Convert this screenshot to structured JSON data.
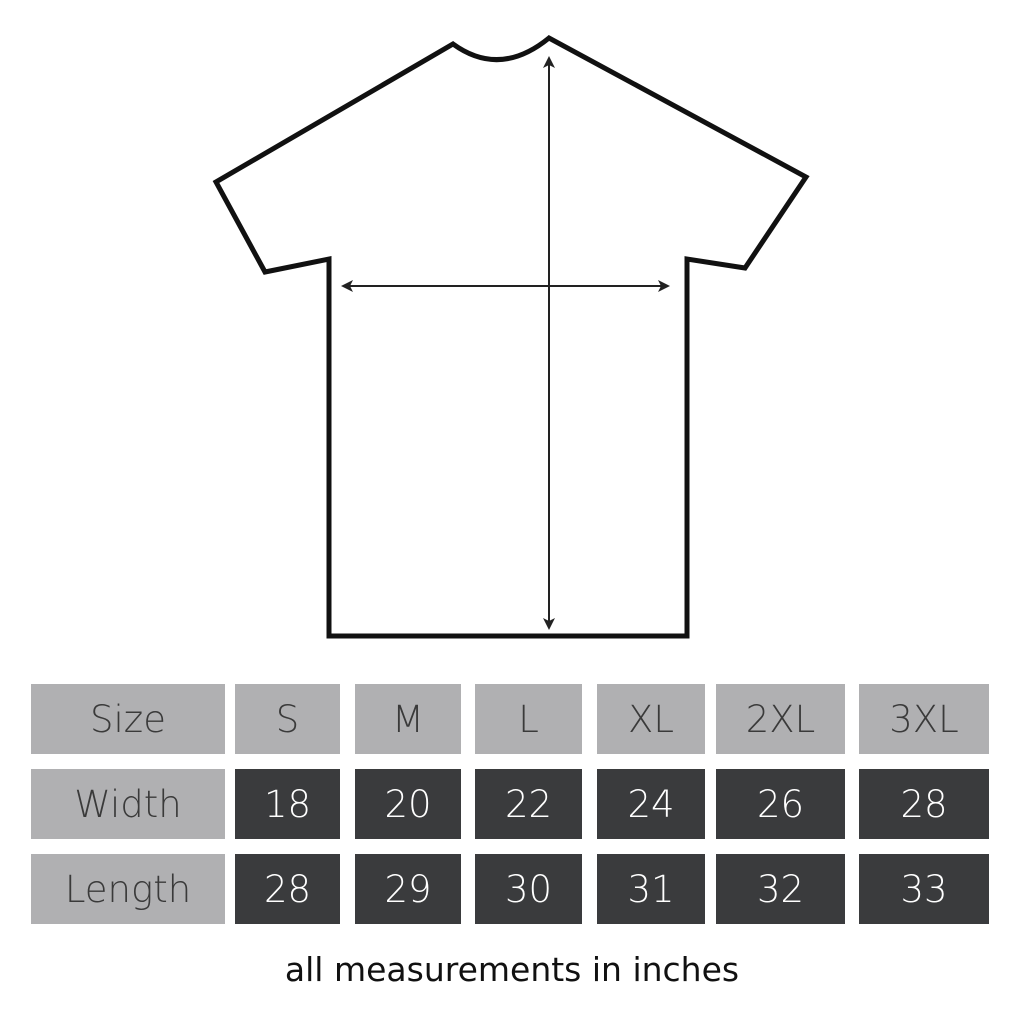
{
  "table": {
    "rows": [
      {
        "label": "Size",
        "values": [
          "S",
          "M",
          "L",
          "XL",
          "2XL",
          "3XL"
        ]
      },
      {
        "label": "Width",
        "values": [
          "18",
          "20",
          "22",
          "24",
          "26",
          "28"
        ]
      },
      {
        "label": "Length",
        "values": [
          "28",
          "29",
          "30",
          "31",
          "32",
          "33"
        ]
      }
    ]
  },
  "note": "all measurements in inches",
  "colors": {
    "header_cell": "#b0b0b2",
    "value_cell": "#3a3b3d",
    "outline": "#111111"
  }
}
